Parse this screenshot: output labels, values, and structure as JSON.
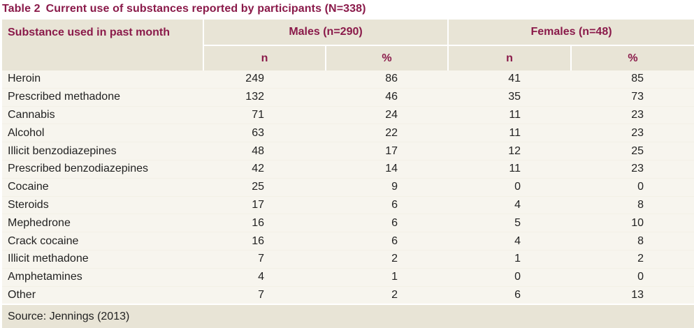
{
  "caption": {
    "number": "Table 2",
    "title": "Current use of substances reported by participants (N=338)"
  },
  "header": {
    "substance": "Substance used in past month",
    "males": "Males (n=290)",
    "females": "Females (n=48)",
    "n": "n",
    "pct": "%"
  },
  "rows": [
    {
      "substance": "Heroin",
      "m_n": "249",
      "m_pct": "86",
      "f_n": "41",
      "f_pct": "85"
    },
    {
      "substance": "Prescribed methadone",
      "m_n": "132",
      "m_pct": "46",
      "f_n": "35",
      "f_pct": "73"
    },
    {
      "substance": "Cannabis",
      "m_n": "71",
      "m_pct": "24",
      "f_n": "11",
      "f_pct": "23"
    },
    {
      "substance": "Alcohol",
      "m_n": "63",
      "m_pct": "22",
      "f_n": "11",
      "f_pct": "23"
    },
    {
      "substance": "Illicit benzodiazepines",
      "m_n": "48",
      "m_pct": "17",
      "f_n": "12",
      "f_pct": "25"
    },
    {
      "substance": "Prescribed benzodiazepines",
      "m_n": "42",
      "m_pct": "14",
      "f_n": "11",
      "f_pct": "23"
    },
    {
      "substance": "Cocaine",
      "m_n": "25",
      "m_pct": "9",
      "f_n": "0",
      "f_pct": "0"
    },
    {
      "substance": "Steroids",
      "m_n": "17",
      "m_pct": "6",
      "f_n": "4",
      "f_pct": "8"
    },
    {
      "substance": "Mephedrone",
      "m_n": "16",
      "m_pct": "6",
      "f_n": "5",
      "f_pct": "10"
    },
    {
      "substance": "Crack cocaine",
      "m_n": "16",
      "m_pct": "6",
      "f_n": "4",
      "f_pct": "8"
    },
    {
      "substance": "Illicit methadone",
      "m_n": "7",
      "m_pct": "2",
      "f_n": "1",
      "f_pct": "2"
    },
    {
      "substance": "Amphetamines",
      "m_n": "4",
      "m_pct": "1",
      "f_n": "0",
      "f_pct": "0"
    },
    {
      "substance": "Other",
      "m_n": "7",
      "m_pct": "2",
      "f_n": "6",
      "f_pct": "13"
    }
  ],
  "source": "Source: Jennings (2013)",
  "colors": {
    "accent": "#8a1a4a",
    "header_bg": "#e8e4d6",
    "body_bg": "#f7f5ee"
  }
}
